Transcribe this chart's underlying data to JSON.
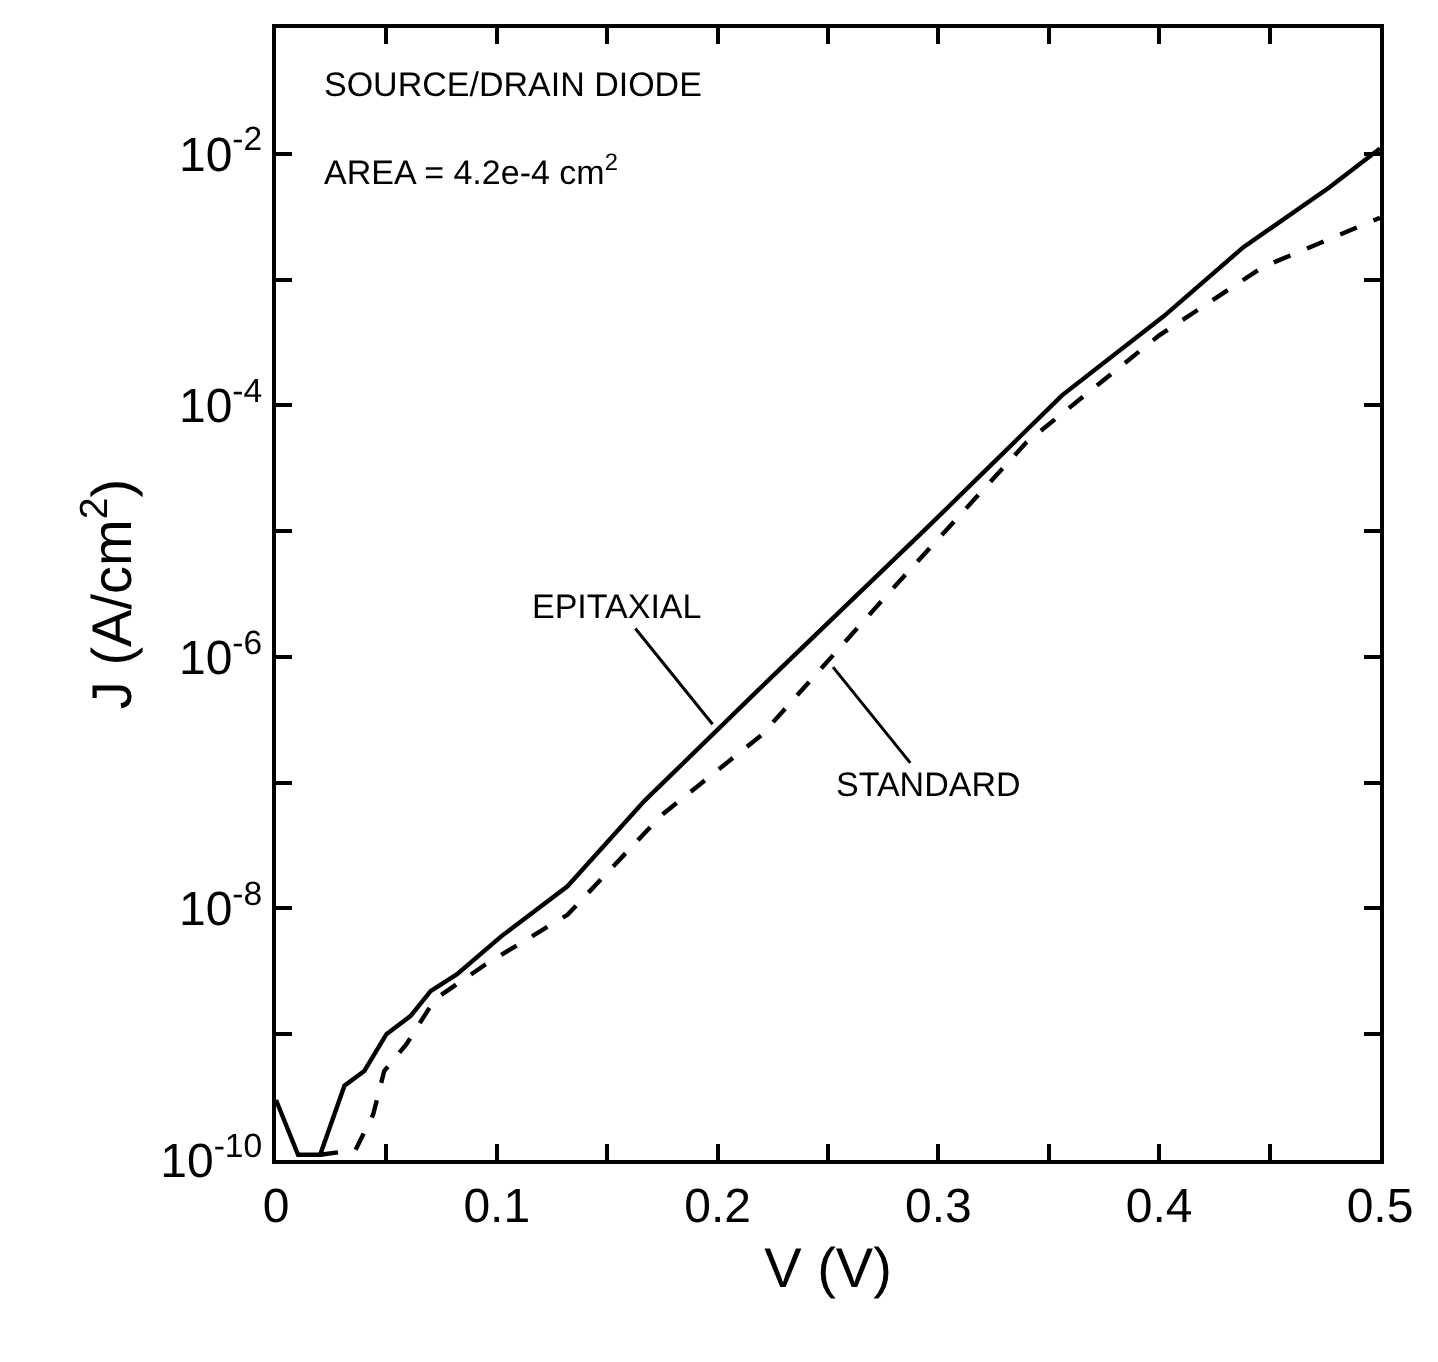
{
  "chart_data": {
    "type": "line",
    "xlabel": "V (V)",
    "ylabel": "J (A/cm$^{2}$)",
    "log": "y",
    "marker": "none",
    "xlim": [
      0,
      0.5
    ],
    "ylim": [
      1e-10,
      0.1
    ],
    "xticks": [
      0,
      {
        "value": 0.05,
        "label": null
      },
      0.1,
      {
        "value": 0.15,
        "label": null
      },
      0.2,
      {
        "value": 0.25,
        "label": null
      },
      0.3,
      {
        "value": 0.35,
        "label": null
      },
      0.4,
      {
        "value": 0.45,
        "label": null
      },
      0.5
    ],
    "yticks": [
      {
        "value": 1e-10,
        "label": "10$^{-10}$"
      },
      {
        "value": 1e-09,
        "label": null
      },
      {
        "value": 1e-08,
        "label": "10$^{-8}$"
      },
      {
        "value": 1e-07,
        "label": null
      },
      {
        "value": 1e-06,
        "label": "10$^{-6}$"
      },
      {
        "value": 1e-05,
        "label": null
      },
      {
        "value": 0.0001,
        "label": "10$^{-4}$"
      },
      {
        "value": 0.001,
        "label": null
      },
      {
        "value": 0.01,
        "label": "10$^{-2}$"
      },
      {
        "value": 0.1,
        "label": null
      }
    ],
    "series": [
      {
        "color": "#000000",
        "line_style": "solid",
        "x": [
          0,
          0.01,
          0.02,
          0.031,
          0.04,
          0.05,
          0.061,
          0.07,
          0.082,
          0.102,
          0.132,
          0.167,
          0.22,
          0.295,
          0.356,
          0.402,
          0.438,
          0.477,
          0.5
        ],
        "values": [
          3e-10,
          1.1e-10,
          1.1e-10,
          3.9e-10,
          5.1e-10,
          1e-09,
          1.4e-09,
          2.2e-09,
          3e-09,
          6e-09,
          1.5e-08,
          7.2e-08,
          5.8e-07,
          1.07e-05,
          0.00012,
          0.00051,
          0.0018,
          0.0054,
          0.011
        ]
      },
      {
        "color": "#000000",
        "line_style": "dashed",
        "x": [
          0.02,
          0.036,
          0.044,
          0.049,
          0.059,
          0.072,
          0.095,
          0.132,
          0.175,
          0.22,
          0.28,
          0.34,
          0.4,
          0.447,
          0.5
        ],
        "values": [
          1.1e-10,
          1.2e-10,
          2.3e-10,
          5.1e-10,
          8.3e-10,
          1.9e-09,
          3.6e-09,
          8.9e-09,
          5.6e-08,
          2.4e-07,
          3.6e-06,
          5.1e-05,
          0.00036,
          0.00126,
          0.0031
        ]
      }
    ],
    "annotations": [
      "SOURCE/DRAIN DIODE",
      "AREA = 4.2e-4 cm$^{2}$",
      {
        "text": "EPITAXIAL",
        "x": 0.2,
        "y": 2.6e-07
      },
      {
        "text": "STANDARD",
        "x": 0.25,
        "y": 9.3e-07
      }
    ]
  }
}
